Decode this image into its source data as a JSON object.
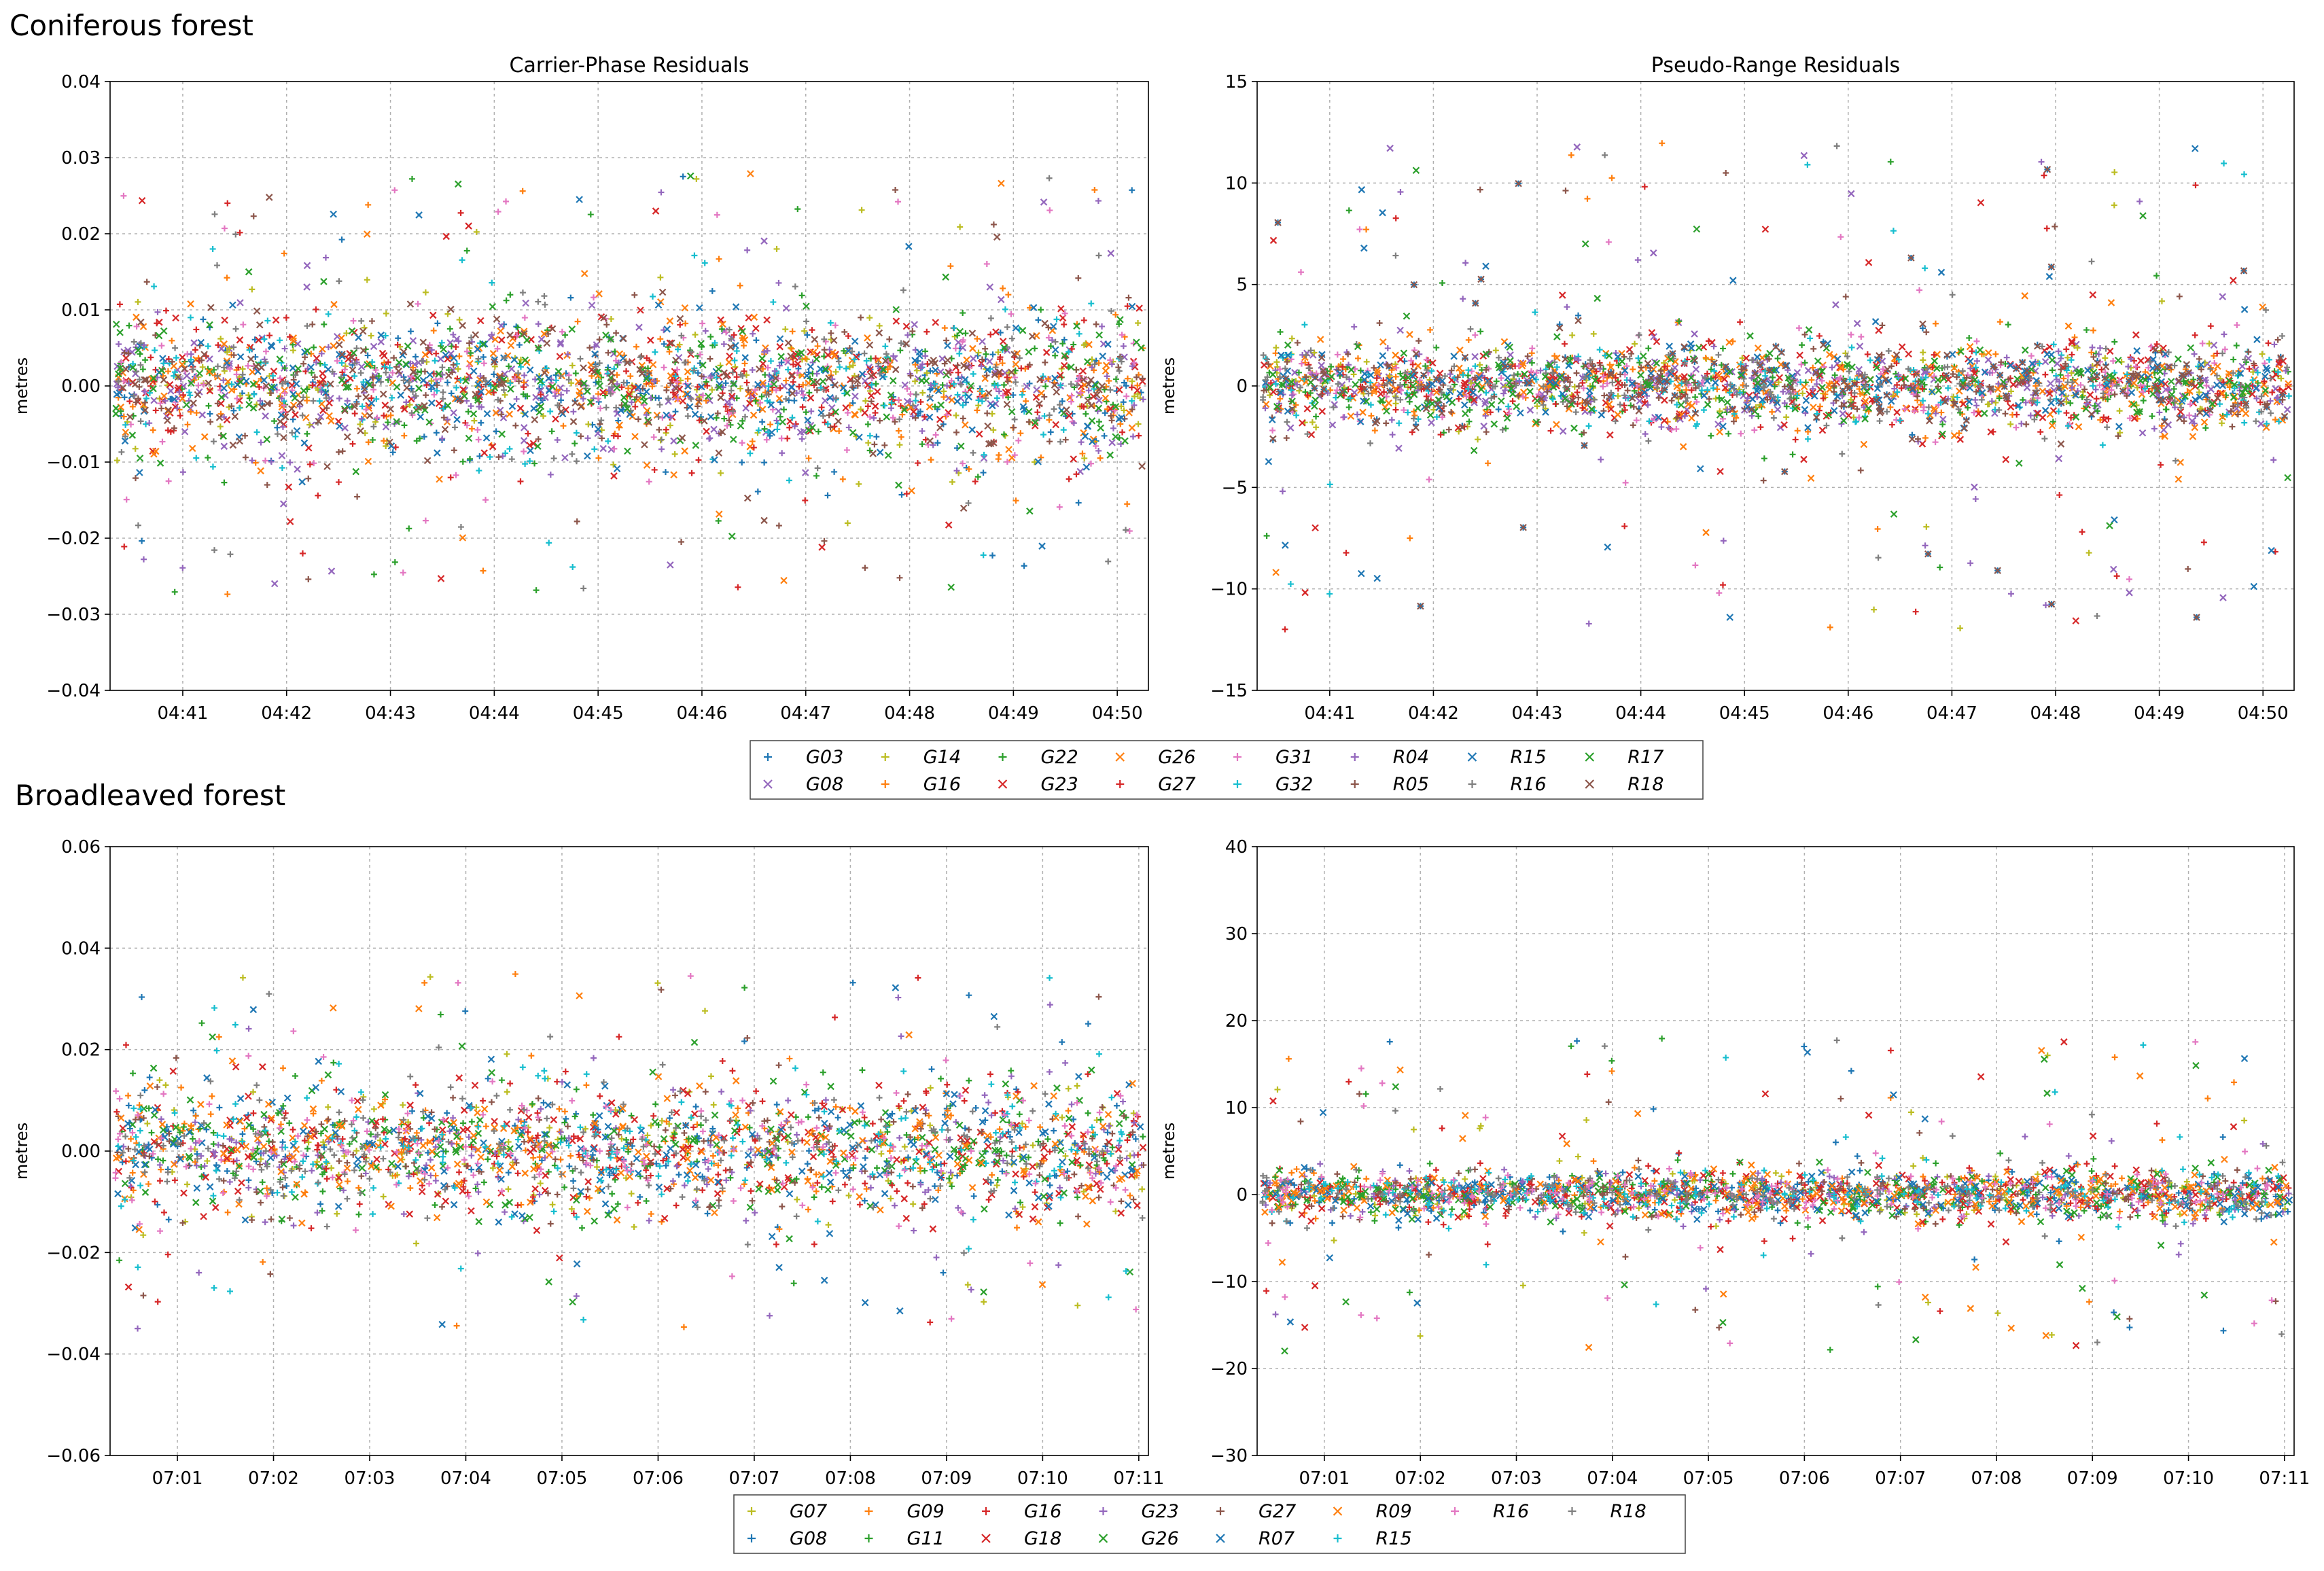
{
  "sections": [
    {
      "title": "Coniferous forest"
    },
    {
      "title": "Broadleaved forest"
    }
  ],
  "chart_data": [
    {
      "type": "scatter",
      "section": "Coniferous forest",
      "title": "Carrier-Phase Residuals",
      "xlabel": "",
      "ylabel": "metres",
      "ylim": [
        -0.04,
        0.04
      ],
      "yticks": [
        -0.04,
        -0.03,
        -0.02,
        -0.01,
        0.0,
        0.01,
        0.02,
        0.03,
        0.04
      ],
      "ytick_labels": [
        "−0.04",
        "−0.03",
        "−0.02",
        "−0.01",
        "0.00",
        "0.01",
        "0.02",
        "0.03",
        "0.04"
      ],
      "x_labels": [
        "04:41",
        "04:42",
        "04:43",
        "04:44",
        "04:45",
        "04:46",
        "04:47",
        "04:48",
        "04:49",
        "04:50"
      ],
      "xlim": [
        40.3,
        50.3
      ],
      "grid": true,
      "band_sigma": 0.0045,
      "outlier_range": 0.028,
      "series": "legend_top"
    },
    {
      "type": "scatter",
      "section": "Coniferous forest",
      "title": "Pseudo-Range Residuals",
      "xlabel": "",
      "ylabel": "metres",
      "ylim": [
        -15,
        15
      ],
      "yticks": [
        -15,
        -10,
        -5,
        0,
        5,
        10,
        15
      ],
      "ytick_labels": [
        "−15",
        "−10",
        "−5",
        "0",
        "5",
        "10",
        "15"
      ],
      "x_labels": [
        "04:41",
        "04:42",
        "04:43",
        "04:44",
        "04:45",
        "04:46",
        "04:47",
        "04:48",
        "04:49",
        "04:50"
      ],
      "xlim": [
        40.3,
        50.3
      ],
      "grid": true,
      "band_sigma": 1.0,
      "outlier_range": 12,
      "series": "legend_top"
    },
    {
      "type": "scatter",
      "section": "Broadleaved forest",
      "title": "",
      "xlabel": "",
      "ylabel": "metres",
      "ylim": [
        -0.06,
        0.06
      ],
      "yticks": [
        -0.06,
        -0.04,
        -0.02,
        0.0,
        0.02,
        0.04,
        0.06
      ],
      "ytick_labels": [
        "−0.06",
        "−0.04",
        "−0.02",
        "0.00",
        "0.02",
        "0.04",
        "0.06"
      ],
      "x_labels": [
        "07:01",
        "07:02",
        "07:03",
        "07:04",
        "07:05",
        "07:06",
        "07:07",
        "07:08",
        "07:09",
        "07:10",
        "07:11"
      ],
      "xlim": [
        0.3,
        11.1
      ],
      "grid": true,
      "band_sigma": 0.006,
      "outlier_range": 0.035,
      "series": "legend_bottom"
    },
    {
      "type": "scatter",
      "section": "Broadleaved forest",
      "title": "",
      "xlabel": "",
      "ylabel": "metres",
      "ylim": [
        -30,
        40
      ],
      "yticks": [
        -30,
        -20,
        -10,
        0,
        10,
        20,
        30,
        40
      ],
      "ytick_labels": [
        "−30",
        "−20",
        "−10",
        "0",
        "10",
        "20",
        "30",
        "40"
      ],
      "x_labels": [
        "07:01",
        "07:02",
        "07:03",
        "07:04",
        "07:05",
        "07:06",
        "07:07",
        "07:08",
        "07:09",
        "07:10",
        "07:11"
      ],
      "xlim": [
        0.3,
        11.1
      ],
      "grid": true,
      "band_sigma": 1.3,
      "outlier_range": 18,
      "series": "legend_bottom"
    }
  ],
  "legend_top": {
    "columns": [
      [
        {
          "name": "G03",
          "color": "#1f77b4",
          "marker": "plus"
        },
        {
          "name": "G08",
          "color": "#9467bd",
          "marker": "x"
        }
      ],
      [
        {
          "name": "G14",
          "color": "#bcbd22",
          "marker": "plus"
        },
        {
          "name": "G16",
          "color": "#ff7f0e",
          "marker": "plus"
        }
      ],
      [
        {
          "name": "G22",
          "color": "#2ca02c",
          "marker": "plus"
        },
        {
          "name": "G23",
          "color": "#d62728",
          "marker": "x"
        }
      ],
      [
        {
          "name": "G26",
          "color": "#ff7f0e",
          "marker": "x"
        },
        {
          "name": "G27",
          "color": "#d62728",
          "marker": "plus"
        }
      ],
      [
        {
          "name": "G31",
          "color": "#e377c2",
          "marker": "plus"
        },
        {
          "name": "G32",
          "color": "#17becf",
          "marker": "plus"
        }
      ],
      [
        {
          "name": "R04",
          "color": "#9467bd",
          "marker": "plus"
        },
        {
          "name": "R05",
          "color": "#8c564b",
          "marker": "plus"
        }
      ],
      [
        {
          "name": "R15",
          "color": "#1f77b4",
          "marker": "x"
        },
        {
          "name": "R16",
          "color": "#7f7f7f",
          "marker": "plus"
        }
      ],
      [
        {
          "name": "R17",
          "color": "#2ca02c",
          "marker": "x"
        },
        {
          "name": "R18",
          "color": "#8c564b",
          "marker": "x"
        }
      ]
    ]
  },
  "legend_bottom": {
    "columns": [
      [
        {
          "name": "G07",
          "color": "#bcbd22",
          "marker": "plus"
        },
        {
          "name": "G08",
          "color": "#1f77b4",
          "marker": "plus"
        }
      ],
      [
        {
          "name": "G09",
          "color": "#ff7f0e",
          "marker": "plus"
        },
        {
          "name": "G11",
          "color": "#2ca02c",
          "marker": "plus"
        }
      ],
      [
        {
          "name": "G16",
          "color": "#d62728",
          "marker": "plus"
        },
        {
          "name": "G18",
          "color": "#d62728",
          "marker": "x"
        }
      ],
      [
        {
          "name": "G23",
          "color": "#9467bd",
          "marker": "plus"
        },
        {
          "name": "G26",
          "color": "#2ca02c",
          "marker": "x"
        }
      ],
      [
        {
          "name": "G27",
          "color": "#8c564b",
          "marker": "plus"
        },
        {
          "name": "R07",
          "color": "#1f77b4",
          "marker": "x"
        }
      ],
      [
        {
          "name": "R09",
          "color": "#ff7f0e",
          "marker": "x"
        },
        {
          "name": "R15",
          "color": "#17becf",
          "marker": "plus"
        }
      ],
      [
        {
          "name": "R16",
          "color": "#e377c2",
          "marker": "plus"
        }
      ],
      [
        {
          "name": "R18",
          "color": "#7f7f7f",
          "marker": "plus"
        }
      ]
    ]
  }
}
